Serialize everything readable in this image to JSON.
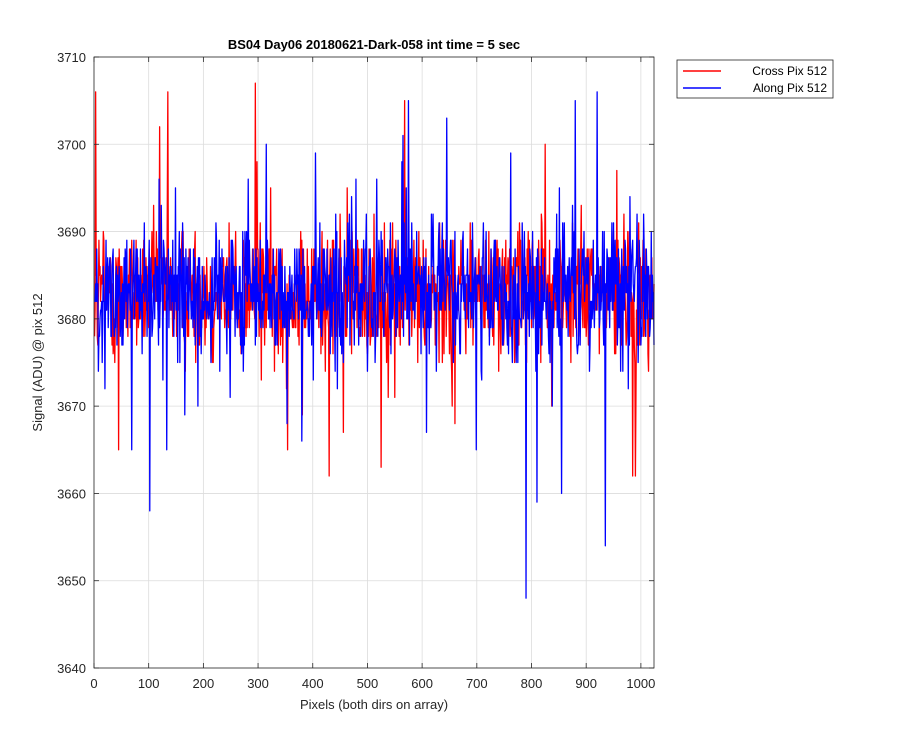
{
  "chart_data": {
    "type": "line",
    "title": "BS04 Day06 20180621-Dark-058 int time = 5 sec",
    "xlabel": "Pixels (both dirs on array)",
    "ylabel": "Signal (ADU) @ pix 512",
    "xlim": [
      0,
      1024
    ],
    "ylim": [
      3640,
      3710
    ],
    "xticks": [
      0,
      100,
      200,
      300,
      400,
      500,
      600,
      700,
      800,
      900,
      1000
    ],
    "yticks": [
      3640,
      3650,
      3660,
      3670,
      3680,
      3690,
      3700,
      3710
    ],
    "grid": true,
    "legend_position": "outside-top-right",
    "series": [
      {
        "name": "Cross Pix 512",
        "color": "#ff0000",
        "x_range": [
          1,
          1024
        ],
        "typical_range": [
          3672,
          3696
        ],
        "mean": 3683,
        "peaks": [
          [
            3,
            3706
          ],
          [
            135,
            3706
          ],
          [
            295,
            3707
          ],
          [
            120,
            3702
          ],
          [
            568,
            3705
          ]
        ],
        "troughs": [
          [
            45,
            3665
          ],
          [
            430,
            3662
          ],
          [
            525,
            3663
          ],
          [
            985,
            3662
          ],
          [
            990,
            3662
          ]
        ]
      },
      {
        "name": "Along Pix 512",
        "color": "#0000ff",
        "x_range": [
          1,
          1024
        ],
        "typical_range": [
          3672,
          3696
        ],
        "mean": 3683,
        "peaks": [
          [
            575,
            3705
          ],
          [
            920,
            3706
          ],
          [
            880,
            3705
          ],
          [
            645,
            3703
          ]
        ],
        "troughs": [
          [
            102,
            3658
          ],
          [
            790,
            3648
          ],
          [
            810,
            3659
          ],
          [
            935,
            3654
          ],
          [
            855,
            3660
          ]
        ]
      }
    ]
  }
}
